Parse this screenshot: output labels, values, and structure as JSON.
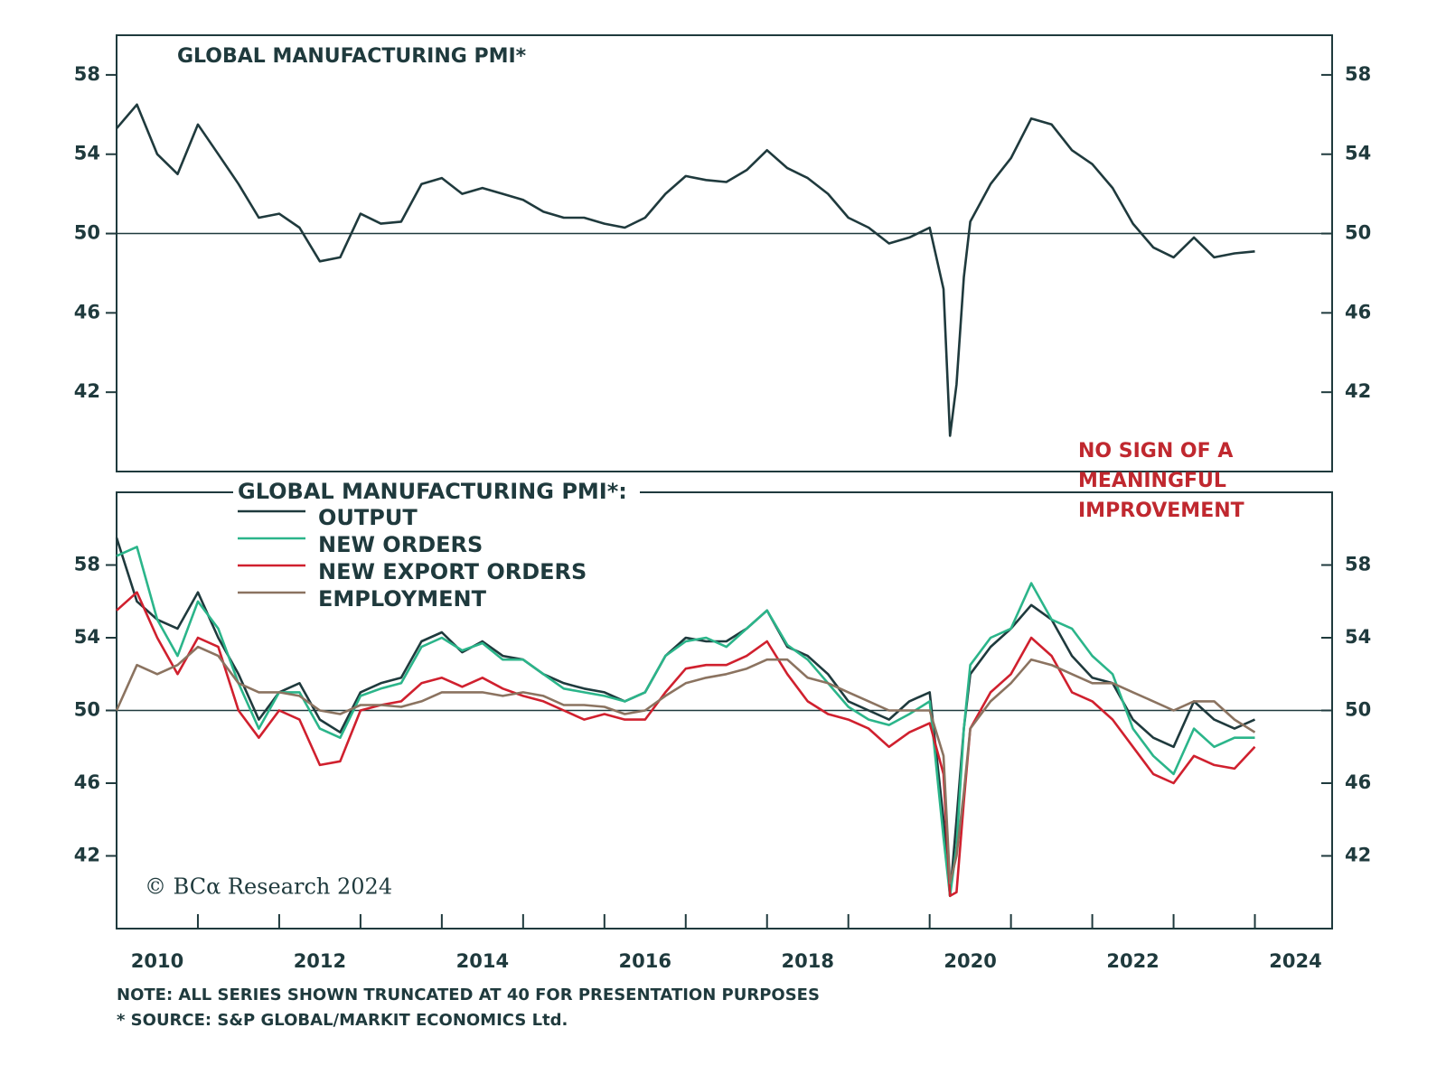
{
  "chart_data": [
    {
      "type": "line",
      "title": "GLOBAL MANUFACTURING PMI*",
      "color": "#1f3a3d",
      "x": [
        2010.0,
        2010.25,
        2010.5,
        2010.75,
        2011.0,
        2011.25,
        2011.5,
        2011.75,
        2012.0,
        2012.25,
        2012.5,
        2012.75,
        2013.0,
        2013.25,
        2013.5,
        2013.75,
        2014.0,
        2014.25,
        2014.5,
        2014.75,
        2015.0,
        2015.25,
        2015.5,
        2015.75,
        2016.0,
        2016.25,
        2016.5,
        2016.75,
        2017.0,
        2017.25,
        2017.5,
        2017.75,
        2018.0,
        2018.25,
        2018.5,
        2018.75,
        2019.0,
        2019.25,
        2019.5,
        2019.75,
        2020.0,
        2020.17,
        2020.25,
        2020.33,
        2020.42,
        2020.5,
        2020.75,
        2021.0,
        2021.25,
        2021.5,
        2021.75,
        2022.0,
        2022.25,
        2022.5,
        2022.75,
        2023.0,
        2023.25,
        2023.5,
        2023.75,
        2024.0
      ],
      "values": [
        55.3,
        56.5,
        54,
        53,
        55.5,
        54,
        52.5,
        50.8,
        51,
        50.3,
        48.6,
        48.8,
        51,
        50.5,
        50.6,
        52.5,
        52.8,
        52,
        52.3,
        52,
        51.7,
        51.1,
        50.8,
        50.8,
        50.5,
        50.3,
        50.8,
        52,
        52.9,
        52.7,
        52.6,
        53.2,
        54.2,
        53.3,
        52.8,
        52,
        50.8,
        50.3,
        49.5,
        49.8,
        50.3,
        47.2,
        39.8,
        42.4,
        47.8,
        50.6,
        52.5,
        53.8,
        55.8,
        55.5,
        54.2,
        53.5,
        52.3,
        50.5,
        49.3,
        48.8,
        49.8,
        48.8,
        49.0,
        49.1
      ],
      "xlim": [
        2010,
        2024.95
      ],
      "ylim": [
        38,
        60
      ],
      "yticks": [
        42,
        46,
        50,
        54,
        58
      ],
      "reference_line": 50,
      "annotation": [
        "NO SIGN OF A",
        "MEANINGFUL",
        "IMPROVEMENT"
      ]
    },
    {
      "type": "line",
      "legend_title": "GLOBAL MANUFACTURING PMI*:",
      "x": [
        2010.0,
        2010.25,
        2010.5,
        2010.75,
        2011.0,
        2011.25,
        2011.5,
        2011.75,
        2012.0,
        2012.25,
        2012.5,
        2012.75,
        2013.0,
        2013.25,
        2013.5,
        2013.75,
        2014.0,
        2014.25,
        2014.5,
        2014.75,
        2015.0,
        2015.25,
        2015.5,
        2015.75,
        2016.0,
        2016.25,
        2016.5,
        2016.75,
        2017.0,
        2017.25,
        2017.5,
        2017.75,
        2018.0,
        2018.25,
        2018.5,
        2018.75,
        2019.0,
        2019.25,
        2019.5,
        2019.75,
        2020.0,
        2020.17,
        2020.25,
        2020.33,
        2020.42,
        2020.5,
        2020.75,
        2021.0,
        2021.25,
        2021.5,
        2021.75,
        2022.0,
        2022.25,
        2022.5,
        2022.75,
        2023.0,
        2023.25,
        2023.5,
        2023.75,
        2024.0
      ],
      "series": [
        {
          "name": "OUTPUT",
          "color": "#1f3a3d",
          "values": [
            59.5,
            56,
            55,
            54.5,
            56.5,
            54,
            52,
            49.5,
            51,
            51.5,
            49.5,
            48.8,
            51,
            51.5,
            51.8,
            53.8,
            54.3,
            53.2,
            53.8,
            53,
            52.8,
            52,
            51.5,
            51.2,
            51,
            50.5,
            51,
            53,
            54,
            53.8,
            53.8,
            54.5,
            55.5,
            53.5,
            53,
            52,
            50.5,
            50,
            49.5,
            50.5,
            51,
            44,
            39.8,
            44,
            49,
            52,
            53.5,
            54.5,
            55.8,
            55,
            53,
            51.8,
            51.5,
            49.5,
            48.5,
            48,
            50.5,
            49.5,
            49,
            49.5
          ]
        },
        {
          "name": "NEW ORDERS",
          "color": "#2bb58a",
          "values": [
            58.5,
            59,
            55,
            53,
            56,
            54.5,
            51.5,
            49,
            51,
            51,
            49,
            48.5,
            50.8,
            51.2,
            51.5,
            53.5,
            54,
            53.3,
            53.7,
            52.8,
            52.8,
            52,
            51.2,
            51,
            50.8,
            50.5,
            51,
            53,
            53.8,
            54,
            53.5,
            54.5,
            55.5,
            53.6,
            52.8,
            51.5,
            50.2,
            49.5,
            49.2,
            49.8,
            50.5,
            43,
            39.8,
            42.5,
            49,
            52.5,
            54,
            54.5,
            57,
            55,
            54.5,
            53,
            52,
            49,
            47.5,
            46.5,
            49,
            48,
            48.5,
            48.5
          ]
        },
        {
          "name": "NEW EXPORT ORDERS",
          "color": "#d0202e",
          "values": [
            55.5,
            56.5,
            54,
            52,
            54,
            53.5,
            50,
            48.5,
            50,
            49.5,
            47,
            47.2,
            50,
            50.3,
            50.5,
            51.5,
            51.8,
            51.3,
            51.8,
            51.2,
            50.8,
            50.5,
            50,
            49.5,
            49.8,
            49.5,
            49.5,
            51,
            52.3,
            52.5,
            52.5,
            53,
            53.8,
            52,
            50.5,
            49.8,
            49.5,
            49,
            48,
            48.8,
            49.3,
            46.5,
            39.8,
            40,
            45,
            49,
            51,
            52,
            54,
            53,
            51,
            50.5,
            49.5,
            48,
            46.5,
            46,
            47.5,
            47,
            46.8,
            48
          ]
        },
        {
          "name": "EMPLOYMENT",
          "color": "#8b7360",
          "values": [
            50,
            52.5,
            52,
            52.5,
            53.5,
            53,
            51.5,
            51,
            51,
            50.8,
            50,
            49.8,
            50.3,
            50.3,
            50.2,
            50.5,
            51,
            51,
            51,
            50.8,
            51,
            50.8,
            50.3,
            50.3,
            50.2,
            49.8,
            50,
            50.8,
            51.5,
            51.8,
            52,
            52.3,
            52.8,
            52.8,
            51.8,
            51.5,
            51,
            50.5,
            50,
            50,
            50,
            47.5,
            40.5,
            42,
            45.5,
            49,
            50.5,
            51.5,
            52.8,
            52.5,
            52,
            51.5,
            51.5,
            51,
            50.5,
            50,
            50.5,
            50.5,
            49.5,
            48.8
          ]
        }
      ],
      "xlim": [
        2010,
        2024.95
      ],
      "ylim": [
        38,
        62
      ],
      "yticks": [
        42,
        46,
        50,
        54,
        58
      ],
      "reference_line": 50,
      "xticks": [
        {
          "value": 2010.5,
          "label": "2010"
        },
        {
          "value": 2012.5,
          "label": "2012"
        },
        {
          "value": 2014.5,
          "label": "2014"
        },
        {
          "value": 2016.5,
          "label": "2016"
        },
        {
          "value": 2018.5,
          "label": "2018"
        },
        {
          "value": 2020.5,
          "label": "2020"
        },
        {
          "value": 2022.5,
          "label": "2022"
        },
        {
          "value": 2024.5,
          "label": "2024"
        }
      ],
      "xtick_marks": [
        2011,
        2012,
        2013,
        2014,
        2015,
        2016,
        2017,
        2018,
        2019,
        2020,
        2021,
        2022,
        2023,
        2024
      ],
      "copyright": "© BCα Research 2024"
    }
  ],
  "notes": [
    "NOTE: ALL SERIES SHOWN TRUNCATED AT 40 FOR PRESENTATION PURPOSES",
    "* SOURCE: S&P GLOBAL/MARKIT ECONOMICS Ltd."
  ]
}
